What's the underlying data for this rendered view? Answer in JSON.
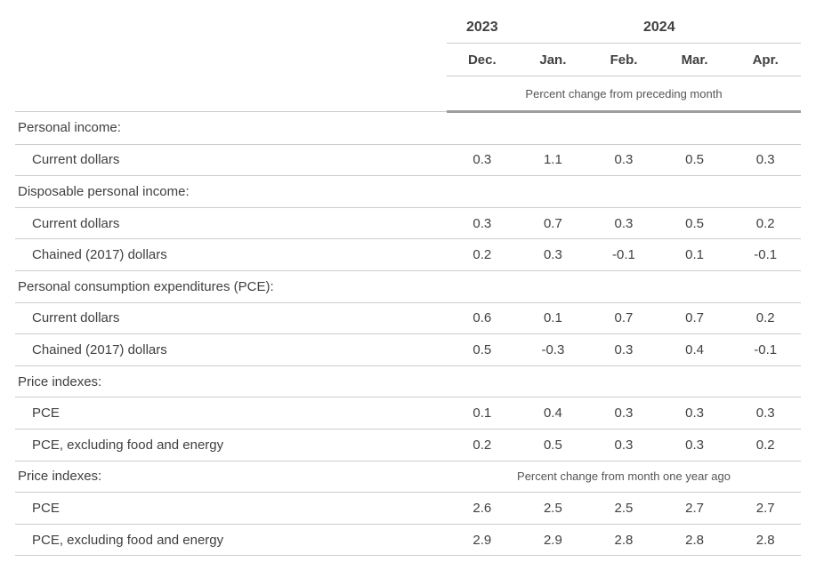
{
  "chart_data": {
    "type": "table",
    "title": "",
    "year_groups": [
      {
        "label": "2023",
        "cols": 1
      },
      {
        "label": "2024",
        "cols": 4
      }
    ],
    "month_columns": [
      "Dec.",
      "Jan.",
      "Feb.",
      "Mar.",
      "Apr."
    ],
    "unit_note_top": "Percent change from preceding month",
    "rows": [
      {
        "type": "section",
        "label": "Personal income:",
        "note": ""
      },
      {
        "type": "data",
        "label": "Current dollars",
        "values": [
          0.3,
          1.1,
          0.3,
          0.5,
          0.3
        ]
      },
      {
        "type": "section",
        "label": "Disposable personal income:",
        "note": ""
      },
      {
        "type": "data",
        "label": "Current dollars",
        "values": [
          0.3,
          0.7,
          0.3,
          0.5,
          0.2
        ]
      },
      {
        "type": "data",
        "label": "Chained (2017) dollars",
        "values": [
          0.2,
          0.3,
          -0.1,
          0.1,
          -0.1
        ]
      },
      {
        "type": "section",
        "label": "Personal consumption expenditures (PCE):",
        "note": ""
      },
      {
        "type": "data",
        "label": "Current dollars",
        "values": [
          0.6,
          0.1,
          0.7,
          0.7,
          0.2
        ]
      },
      {
        "type": "data",
        "label": "Chained (2017) dollars",
        "values": [
          0.5,
          -0.3,
          0.3,
          0.4,
          -0.1
        ]
      },
      {
        "type": "section",
        "label": "Price indexes:",
        "note": ""
      },
      {
        "type": "data",
        "label": "PCE",
        "values": [
          0.1,
          0.4,
          0.3,
          0.3,
          0.3
        ]
      },
      {
        "type": "data",
        "label": "PCE, excluding food and energy",
        "values": [
          0.2,
          0.5,
          0.3,
          0.3,
          0.2
        ]
      },
      {
        "type": "section",
        "label": "Price indexes:",
        "note": "Percent change from month one year ago"
      },
      {
        "type": "data",
        "label": "PCE",
        "values": [
          2.6,
          2.5,
          2.5,
          2.7,
          2.7
        ]
      },
      {
        "type": "data",
        "label": "PCE, excluding food and energy",
        "values": [
          2.9,
          2.9,
          2.8,
          2.8,
          2.8
        ]
      }
    ],
    "layout": {
      "grid": "horizontal rules only",
      "value_alignment": "center",
      "decimals": 1
    }
  },
  "colors": {
    "text": "#404040",
    "muted_text": "#565656",
    "row_line": "#cccccc",
    "header_rule": "#9e9e9e",
    "background": "#ffffff"
  }
}
